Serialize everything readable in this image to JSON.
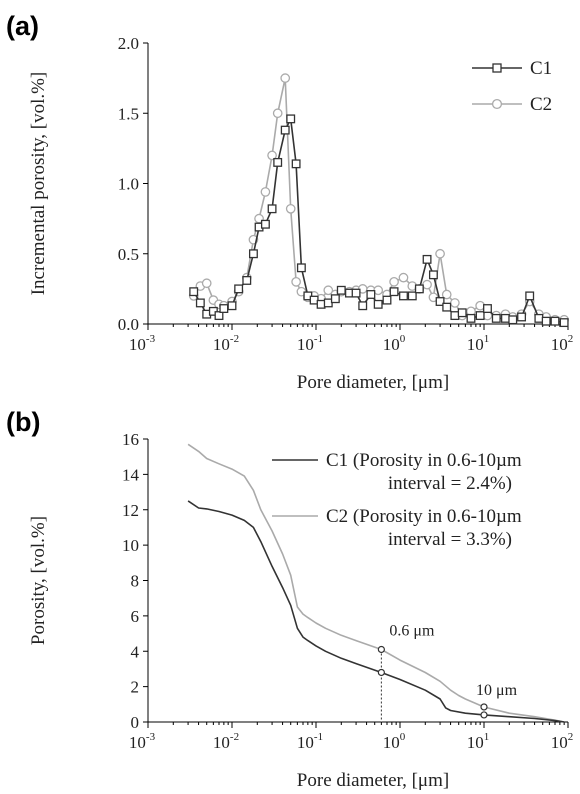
{
  "chart_data": [
    {
      "panel": "(a)",
      "type": "line",
      "xlabel": "Pore diameter, [μm]",
      "ylabel": "Incremental porosity, [vol.%]",
      "x_scale": "log",
      "xlim": [
        0.001,
        100
      ],
      "ylim": [
        0,
        2.0
      ],
      "xticks": [
        {
          "base": "10",
          "exp": "-3"
        },
        {
          "base": "10",
          "exp": "-2"
        },
        {
          "base": "10",
          "exp": "-1"
        },
        {
          "base": "10",
          "exp": "0"
        },
        {
          "base": "10",
          "exp": "1"
        },
        {
          "base": "10",
          "exp": "2"
        }
      ],
      "yticks": [
        "0.0",
        "0.5",
        "1.0",
        "1.5",
        "2.0"
      ],
      "legend_position": "top-right",
      "series": [
        {
          "name": "C1",
          "marker": "square",
          "color": "#333333",
          "x": [
            0.0035,
            0.0042,
            0.005,
            0.006,
            0.007,
            0.008,
            0.01,
            0.012,
            0.015,
            0.018,
            0.021,
            0.025,
            0.03,
            0.035,
            0.043,
            0.05,
            0.058,
            0.067,
            0.08,
            0.095,
            0.115,
            0.14,
            0.17,
            0.2,
            0.25,
            0.3,
            0.36,
            0.45,
            0.55,
            0.7,
            0.85,
            1.1,
            1.4,
            1.7,
            2.1,
            2.5,
            3.0,
            3.6,
            4.5,
            5.5,
            7.0,
            9.0,
            11.0,
            14.0,
            18.0,
            22.0,
            28.0,
            35.0,
            45.0,
            55.0,
            70.0,
            90.0
          ],
          "y": [
            0.23,
            0.15,
            0.07,
            0.09,
            0.06,
            0.11,
            0.13,
            0.25,
            0.31,
            0.5,
            0.69,
            0.71,
            0.82,
            1.15,
            1.38,
            1.46,
            1.14,
            0.4,
            0.2,
            0.17,
            0.14,
            0.15,
            0.18,
            0.24,
            0.22,
            0.22,
            0.13,
            0.21,
            0.14,
            0.17,
            0.23,
            0.2,
            0.2,
            0.25,
            0.46,
            0.35,
            0.16,
            0.12,
            0.06,
            0.08,
            0.04,
            0.06,
            0.11,
            0.04,
            0.04,
            0.03,
            0.05,
            0.2,
            0.04,
            0.02,
            0.02,
            0.01
          ]
        },
        {
          "name": "C2",
          "marker": "circle",
          "color": "#aaaaaa",
          "x": [
            0.0035,
            0.0042,
            0.005,
            0.006,
            0.007,
            0.008,
            0.01,
            0.012,
            0.015,
            0.018,
            0.021,
            0.025,
            0.03,
            0.035,
            0.043,
            0.05,
            0.058,
            0.067,
            0.08,
            0.095,
            0.115,
            0.14,
            0.17,
            0.2,
            0.25,
            0.3,
            0.36,
            0.45,
            0.55,
            0.7,
            0.85,
            1.1,
            1.4,
            1.7,
            2.1,
            2.5,
            3.0,
            3.6,
            4.5,
            5.5,
            7.0,
            9.0,
            11.0,
            14.0,
            18.0,
            22.0,
            28.0,
            35.0,
            45.0,
            55.0,
            70.0,
            90.0
          ],
          "y": [
            0.2,
            0.27,
            0.29,
            0.17,
            0.14,
            0.13,
            0.16,
            0.23,
            0.33,
            0.6,
            0.75,
            0.94,
            1.2,
            1.5,
            1.75,
            0.82,
            0.3,
            0.23,
            0.19,
            0.2,
            0.18,
            0.24,
            0.21,
            0.23,
            0.23,
            0.24,
            0.25,
            0.24,
            0.24,
            0.21,
            0.3,
            0.33,
            0.27,
            0.25,
            0.28,
            0.19,
            0.5,
            0.21,
            0.15,
            0.06,
            0.09,
            0.13,
            0.06,
            0.06,
            0.07,
            0.05,
            0.07,
            0.16,
            0.07,
            0.05,
            0.03,
            0.03
          ]
        }
      ]
    },
    {
      "panel": "(b)",
      "type": "line",
      "xlabel": "Pore diameter, [μm]",
      "ylabel": "Porosity, [vol.%]",
      "x_scale": "log",
      "xlim": [
        0.001,
        100
      ],
      "ylim": [
        0,
        16
      ],
      "xticks": [
        {
          "base": "10",
          "exp": "-3"
        },
        {
          "base": "10",
          "exp": "-2"
        },
        {
          "base": "10",
          "exp": "-1"
        },
        {
          "base": "10",
          "exp": "0"
        },
        {
          "base": "10",
          "exp": "1"
        },
        {
          "base": "10",
          "exp": "2"
        }
      ],
      "yticks": [
        "0",
        "2",
        "4",
        "6",
        "8",
        "10",
        "12",
        "14",
        "16"
      ],
      "legend_position": "top-right",
      "annotations": [
        {
          "text": "0.6 μm",
          "x": 0.6
        },
        {
          "text": "10 μm",
          "x": 10
        }
      ],
      "series": [
        {
          "name": "C1 (Porosity in 0.6-10µm\ninterval = 2.4%)",
          "legend_lines": [
            "C1 (Porosity in 0.6-10µm",
            "interval = 2.4%)"
          ],
          "color": "#333333",
          "x": [
            0.003,
            0.004,
            0.005,
            0.007,
            0.01,
            0.014,
            0.018,
            0.022,
            0.03,
            0.04,
            0.05,
            0.06,
            0.07,
            0.08,
            0.1,
            0.13,
            0.2,
            0.3,
            0.6,
            1.0,
            2.0,
            3.0,
            3.5,
            4.0,
            6.0,
            10.0,
            20.0,
            40.0,
            70.0,
            90.0
          ],
          "y": [
            12.5,
            12.1,
            12.05,
            11.9,
            11.7,
            11.4,
            11.0,
            10.2,
            8.8,
            7.6,
            6.6,
            5.3,
            4.8,
            4.6,
            4.3,
            4.0,
            3.6,
            3.3,
            2.8,
            2.4,
            1.8,
            1.3,
            0.8,
            0.65,
            0.5,
            0.4,
            0.3,
            0.2,
            0.08,
            0.0
          ]
        },
        {
          "name": "C2 (Porosity in 0.6-10µm\ninterval = 3.3%)",
          "legend_lines": [
            "C2 (Porosity in 0.6-10µm",
            "interval = 3.3%)"
          ],
          "color": "#aaaaaa",
          "x": [
            0.003,
            0.004,
            0.005,
            0.007,
            0.01,
            0.014,
            0.018,
            0.022,
            0.03,
            0.04,
            0.05,
            0.06,
            0.07,
            0.08,
            0.1,
            0.13,
            0.2,
            0.3,
            0.6,
            1.0,
            2.0,
            3.0,
            4.0,
            5.0,
            6.0,
            10.0,
            20.0,
            40.0,
            70.0,
            90.0
          ],
          "y": [
            15.7,
            15.3,
            14.9,
            14.6,
            14.3,
            13.9,
            13.1,
            12.0,
            10.8,
            9.5,
            8.3,
            6.5,
            6.1,
            5.9,
            5.6,
            5.3,
            4.9,
            4.6,
            4.1,
            3.5,
            2.8,
            2.3,
            1.8,
            1.5,
            1.3,
            0.85,
            0.5,
            0.3,
            0.1,
            0.0
          ]
        }
      ]
    }
  ]
}
